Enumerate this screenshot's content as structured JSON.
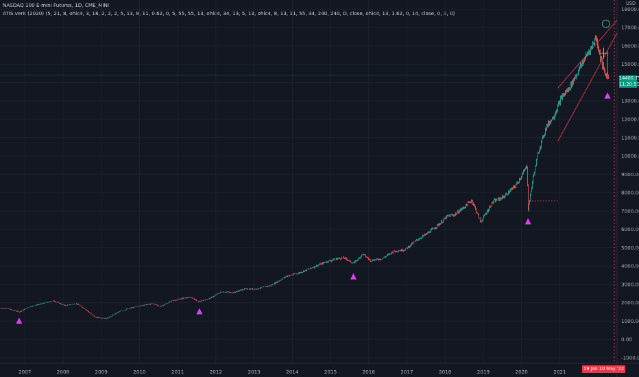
{
  "header": {
    "symbol_line": "NASDAQ 100 E-mini Futures, 1D, CME_MINI",
    "indicator_line": "ATIS.ver8 (2020) (5, 21, 8, ohlc4, 3, 18, 2, 2, 2, 5, 13, 8, 11, 0.62, 0, 5, 55, 55, 13, ohlc4, 34, 13, 5, 13, ohlc4, 8, 13, 11, 55, 34, 240, 240, D, close, ohlc4, 13, 1.62, 0, 14, close, 0, 3, 0)"
  },
  "axis": {
    "currency": "USD",
    "price_label": "14400.75",
    "countdown_label": "11:20:51",
    "date_tag_left": "19 Jan",
    "date_tag_right": "10 May '22"
  },
  "colors": {
    "background": "#131722",
    "up": "#26a69a",
    "down": "#ef5350",
    "signal_triangle": "#e040fb",
    "trend_line": "#f23645",
    "price_line": "#089981"
  },
  "chart_data": {
    "type": "line",
    "title": "NASDAQ 100 E-mini Futures, 1D, CME_MINI",
    "xlabel": "",
    "ylabel": "",
    "x_ticks": [
      "2007",
      "2008",
      "2009",
      "2010",
      "2011",
      "2012",
      "2013",
      "2014",
      "2015",
      "2016",
      "2017",
      "2018",
      "2019",
      "2020",
      "2021"
    ],
    "y_ticks": [
      "18000.00",
      "17000.00",
      "16000.00",
      "15000.00",
      "14000.00",
      "13000.00",
      "12000.00",
      "11000.00",
      "10000.00",
      "9000.00",
      "8000.00",
      "7000.00",
      "6000.00",
      "5000.00",
      "4000.00",
      "3000.00",
      "2000.00",
      "1000.00",
      "0.00",
      "-1000.00"
    ],
    "ylim": [
      -1300,
      18500
    ],
    "xlim": [
      2006.4,
      2022.55
    ],
    "grid": true,
    "series": [
      {
        "x": [
          2006.4,
          2006.6,
          2006.9,
          2007.2,
          2007.5,
          2007.8,
          2008.1,
          2008.4,
          2008.6,
          2008.9,
          2009.2,
          2009.5,
          2009.8,
          2010.1,
          2010.4,
          2010.6,
          2010.9,
          2011.2,
          2011.4,
          2011.6,
          2011.9,
          2012.2,
          2012.5,
          2012.8,
          2013.1,
          2013.5,
          2013.9,
          2014.2,
          2014.5,
          2014.9,
          2015.2,
          2015.4,
          2015.65,
          2015.9,
          2016.1,
          2016.4,
          2016.7,
          2017.0,
          2017.3,
          2017.6,
          2017.9,
          2018.1,
          2018.3,
          2018.6,
          2018.75,
          2018.98,
          2019.3,
          2019.6,
          2019.9,
          2020.1,
          2020.2,
          2020.22,
          2020.35,
          2020.5,
          2020.7,
          2020.9,
          2021.1,
          2021.3,
          2021.5,
          2021.7,
          2021.9,
          2022.0,
          2022.1,
          2022.2,
          2022.25,
          2022.35
        ],
        "y": [
          1700,
          1680,
          1500,
          1800,
          1950,
          2100,
          1850,
          1950,
          1700,
          1200,
          1150,
          1500,
          1700,
          1850,
          1950,
          1800,
          2100,
          2250,
          2300,
          2050,
          2250,
          2600,
          2550,
          2750,
          2750,
          2950,
          3450,
          3600,
          3850,
          4200,
          4400,
          4450,
          4150,
          4650,
          4300,
          4400,
          4800,
          4900,
          5400,
          5800,
          6300,
          6700,
          6800,
          7300,
          7600,
          6400,
          7500,
          7800,
          8400,
          9100,
          9500,
          7000,
          8800,
          10300,
          11600,
          12200,
          13200,
          13700,
          14500,
          15300,
          16000,
          16500,
          15500,
          14700,
          14400,
          14400
        ]
      }
    ],
    "signals": [
      {
        "x": 2006.9,
        "y": 1000
      },
      {
        "x": 2011.62,
        "y": 1520
      },
      {
        "x": 2015.65,
        "y": 3420
      },
      {
        "x": 2020.22,
        "y": 6420
      },
      {
        "x": 2022.3,
        "y": 13280
      }
    ]
  }
}
